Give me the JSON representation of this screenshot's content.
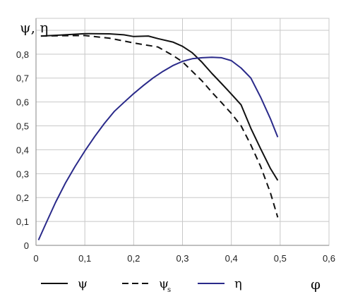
{
  "chart_data": {
    "type": "line",
    "title": "",
    "xlabel": "φ",
    "ylabel": "ψ, η",
    "xlim": [
      0,
      0.6
    ],
    "ylim": [
      0,
      0.9
    ],
    "grid": true,
    "legend_position": "bottom",
    "x_ticks": [
      "0",
      "0,1",
      "0,2",
      "0,3",
      "0,4",
      "0,5",
      "0,6"
    ],
    "y_ticks": [
      "0",
      "0,1",
      "0,2",
      "0,3",
      "0,4",
      "0,5",
      "0,6",
      "0,7",
      "0,8"
    ],
    "series": [
      {
        "name": "ψ",
        "subscript": "",
        "color": "#111111",
        "style": "solid",
        "points": [
          [
            0.01,
            0.876
          ],
          [
            0.05,
            0.88
          ],
          [
            0.1,
            0.886
          ],
          [
            0.15,
            0.885
          ],
          [
            0.18,
            0.881
          ],
          [
            0.2,
            0.874
          ],
          [
            0.23,
            0.876
          ],
          [
            0.25,
            0.865
          ],
          [
            0.28,
            0.851
          ],
          [
            0.3,
            0.833
          ],
          [
            0.32,
            0.806
          ],
          [
            0.34,
            0.766
          ],
          [
            0.36,
            0.72
          ],
          [
            0.38,
            0.677
          ],
          [
            0.4,
            0.633
          ],
          [
            0.42,
            0.588
          ],
          [
            0.44,
            0.49
          ],
          [
            0.46,
            0.404
          ],
          [
            0.48,
            0.322
          ],
          [
            0.495,
            0.272
          ]
        ]
      },
      {
        "name": "ψ",
        "subscript": "s",
        "color": "#111111",
        "style": "dashed",
        "points": [
          [
            0.01,
            0.876
          ],
          [
            0.05,
            0.877
          ],
          [
            0.1,
            0.878
          ],
          [
            0.15,
            0.867
          ],
          [
            0.2,
            0.847
          ],
          [
            0.25,
            0.83
          ],
          [
            0.28,
            0.795
          ],
          [
            0.3,
            0.768
          ],
          [
            0.32,
            0.728
          ],
          [
            0.34,
            0.688
          ],
          [
            0.36,
            0.641
          ],
          [
            0.38,
            0.597
          ],
          [
            0.4,
            0.552
          ],
          [
            0.42,
            0.5
          ],
          [
            0.44,
            0.42
          ],
          [
            0.46,
            0.33
          ],
          [
            0.48,
            0.22
          ],
          [
            0.495,
            0.117
          ]
        ]
      },
      {
        "name": "η",
        "subscript": "",
        "color": "#2a2a8a",
        "style": "solid",
        "points": [
          [
            0.005,
            0.022
          ],
          [
            0.02,
            0.09
          ],
          [
            0.04,
            0.18
          ],
          [
            0.06,
            0.26
          ],
          [
            0.08,
            0.33
          ],
          [
            0.1,
            0.395
          ],
          [
            0.12,
            0.455
          ],
          [
            0.14,
            0.51
          ],
          [
            0.16,
            0.56
          ],
          [
            0.18,
            0.598
          ],
          [
            0.2,
            0.635
          ],
          [
            0.22,
            0.669
          ],
          [
            0.24,
            0.701
          ],
          [
            0.26,
            0.728
          ],
          [
            0.28,
            0.752
          ],
          [
            0.3,
            0.77
          ],
          [
            0.32,
            0.781
          ],
          [
            0.34,
            0.785
          ],
          [
            0.36,
            0.787
          ],
          [
            0.38,
            0.785
          ],
          [
            0.4,
            0.773
          ],
          [
            0.42,
            0.742
          ],
          [
            0.44,
            0.7
          ],
          [
            0.46,
            0.62
          ],
          [
            0.48,
            0.53
          ],
          [
            0.495,
            0.453
          ]
        ]
      }
    ]
  }
}
